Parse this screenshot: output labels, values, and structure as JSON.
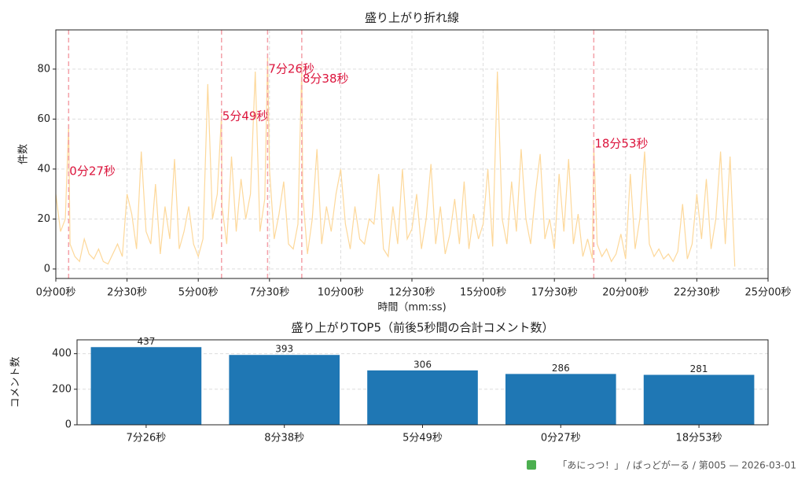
{
  "chart_data": [
    {
      "type": "line",
      "title": "盛り上がり折れ線",
      "xlabel": "時間（mm:ss)",
      "ylabel": "件数",
      "color": "#fdd89a",
      "grid": true,
      "xlim": [
        0,
        1500
      ],
      "ylim": [
        -3.8,
        95.7
      ],
      "xticks": [
        {
          "value": 0,
          "label": "0分00秒"
        },
        {
          "value": 150,
          "label": "2分30秒"
        },
        {
          "value": 300,
          "label": "5分00秒"
        },
        {
          "value": 450,
          "label": "7分30秒"
        },
        {
          "value": 600,
          "label": "10分00秒"
        },
        {
          "value": 750,
          "label": "12分30秒"
        },
        {
          "value": 900,
          "label": "15分00秒"
        },
        {
          "value": 1050,
          "label": "17分30秒"
        },
        {
          "value": 1200,
          "label": "20分00秒"
        },
        {
          "value": 1350,
          "label": "22分30秒"
        },
        {
          "value": 1500,
          "label": "25分00秒"
        }
      ],
      "yticks": [
        0,
        20,
        40,
        60,
        80
      ],
      "x": [
        0,
        10,
        20,
        27,
        30,
        40,
        50,
        60,
        70,
        80,
        90,
        100,
        110,
        120,
        130,
        140,
        150,
        160,
        170,
        180,
        190,
        200,
        210,
        220,
        230,
        240,
        250,
        260,
        270,
        280,
        290,
        300,
        310,
        320,
        330,
        340,
        349,
        350,
        360,
        370,
        380,
        390,
        400,
        410,
        420,
        430,
        440,
        446,
        450,
        460,
        470,
        480,
        490,
        500,
        510,
        518,
        520,
        530,
        540,
        550,
        560,
        570,
        580,
        590,
        600,
        610,
        620,
        630,
        640,
        650,
        660,
        670,
        680,
        690,
        700,
        710,
        720,
        730,
        740,
        750,
        760,
        770,
        780,
        790,
        800,
        810,
        820,
        830,
        840,
        850,
        860,
        870,
        880,
        890,
        900,
        910,
        920,
        930,
        940,
        950,
        960,
        970,
        980,
        990,
        1000,
        1010,
        1020,
        1030,
        1040,
        1050,
        1060,
        1070,
        1080,
        1090,
        1100,
        1110,
        1120,
        1130,
        1133,
        1140,
        1150,
        1160,
        1170,
        1180,
        1190,
        1200,
        1210,
        1220,
        1230,
        1240,
        1250,
        1260,
        1270,
        1280,
        1290,
        1300,
        1310,
        1320,
        1330,
        1340,
        1350,
        1360,
        1370,
        1380,
        1390,
        1400,
        1410,
        1420,
        1430
      ],
      "values": [
        30,
        15,
        20,
        58,
        10,
        5,
        3,
        12,
        6,
        4,
        8,
        3,
        2,
        6,
        10,
        5,
        30,
        22,
        8,
        47,
        15,
        10,
        34,
        6,
        25,
        12,
        44,
        8,
        15,
        25,
        10,
        5,
        12,
        74,
        20,
        30,
        62,
        25,
        10,
        45,
        15,
        36,
        20,
        30,
        79,
        15,
        28,
        85,
        40,
        12,
        22,
        35,
        10,
        8,
        18,
        82,
        30,
        6,
        20,
        48,
        10,
        25,
        15,
        30,
        40,
        18,
        8,
        25,
        12,
        10,
        20,
        18,
        38,
        8,
        5,
        25,
        10,
        40,
        12,
        16,
        30,
        8,
        20,
        42,
        10,
        25,
        6,
        14,
        28,
        10,
        35,
        8,
        22,
        12,
        18,
        40,
        9,
        79,
        20,
        10,
        35,
        15,
        48,
        20,
        10,
        30,
        46,
        12,
        20,
        8,
        38,
        15,
        44,
        10,
        22,
        5,
        12,
        4,
        50,
        10,
        5,
        8,
        3,
        6,
        14,
        4,
        38,
        8,
        20,
        47,
        10,
        5,
        8,
        4,
        6,
        3,
        7,
        26,
        4,
        10,
        30,
        12,
        36,
        8,
        20,
        47,
        10,
        45,
        1
      ],
      "annotations": [
        {
          "x": 27,
          "y": 39,
          "label": "0分27秒"
        },
        {
          "x": 349,
          "y": 61,
          "label": "5分49秒"
        },
        {
          "x": 446,
          "y": 80,
          "label": "7分26秒"
        },
        {
          "x": 518,
          "y": 76,
          "label": "8分38秒"
        },
        {
          "x": 1133,
          "y": 50,
          "label": "18分53秒"
        }
      ]
    },
    {
      "type": "bar",
      "title": "盛り上がりTOP5（前後5秒間の合計コメント数）",
      "ylabel": "コメント数",
      "color": "#1f77b4",
      "grid": true,
      "categories": [
        "7分26秒",
        "8分38秒",
        "5分49秒",
        "0分27秒",
        "18分53秒"
      ],
      "values": [
        437,
        393,
        306,
        286,
        281
      ],
      "ylim": [
        0,
        478
      ],
      "yticks": [
        0,
        200,
        400
      ]
    }
  ],
  "footer": {
    "text": "「あにっつ！」 / ぱっどがーる / 第005 — 2026-03-01"
  }
}
